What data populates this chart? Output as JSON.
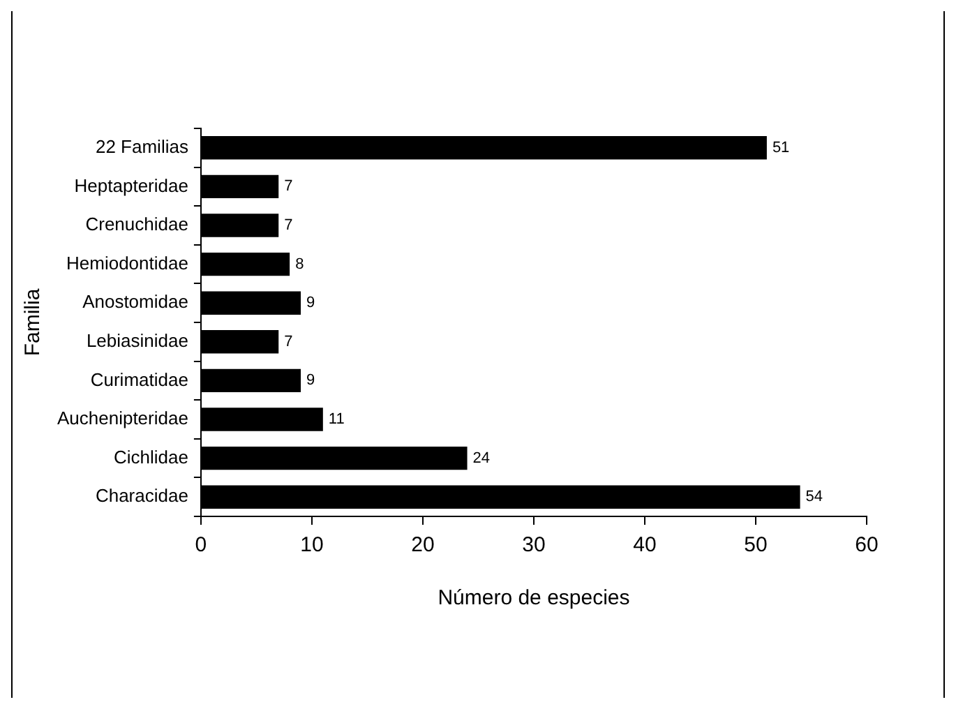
{
  "chart_data": {
    "type": "bar",
    "orientation": "horizontal",
    "xlabel": "Número de especies",
    "ylabel": "Familia",
    "categories": [
      "22 Familias",
      "Heptapteridae",
      "Crenuchidae",
      "Hemiodontidae",
      "Anostomidae",
      "Lebiasinidae",
      "Curimatidae",
      "Auchenipteridae",
      "Cichlidae",
      "Characidae"
    ],
    "values": [
      51,
      7,
      7,
      8,
      9,
      7,
      9,
      11,
      24,
      54
    ],
    "color": "#000000",
    "xlim": [
      0,
      60
    ],
    "xticks": [
      0,
      10,
      20,
      30,
      40,
      50,
      60
    ],
    "data_labels": true,
    "grid": false,
    "legend": false
  }
}
